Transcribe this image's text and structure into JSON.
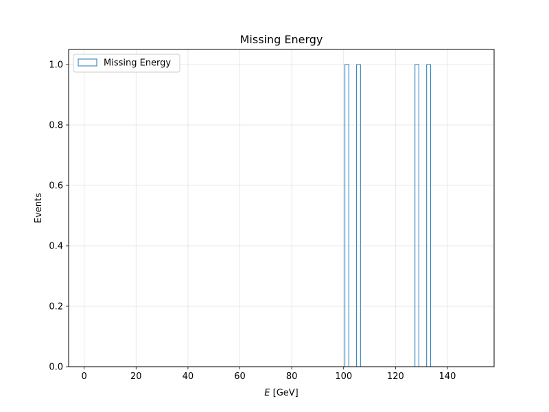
{
  "chart_data": {
    "type": "bar",
    "title": "Missing Energy",
    "xlabel_var": "E",
    "xlabel_unit": " [GeV]",
    "ylabel": "Events",
    "xlim": [
      -6,
      158
    ],
    "ylim": [
      0,
      1.05
    ],
    "xticks": [
      0,
      20,
      40,
      60,
      80,
      100,
      120,
      140
    ],
    "yticks": [
      0.0,
      0.2,
      0.4,
      0.6,
      0.8,
      1.0
    ],
    "xtick_labels": [
      "0",
      "20",
      "40",
      "60",
      "80",
      "100",
      "120",
      "140"
    ],
    "ytick_labels": [
      "0.0",
      "0.2",
      "0.4",
      "0.6",
      "0.8",
      "1.0"
    ],
    "grid": true,
    "legend_position": "top-left",
    "series": [
      {
        "name": "Missing Energy",
        "color": "#1f77b4",
        "hist_range": [
          0,
          150
        ],
        "bins": [
          {
            "x0": 100.5,
            "x1": 102.0,
            "count": 1
          },
          {
            "x0": 105.0,
            "x1": 106.5,
            "count": 1
          },
          {
            "x0": 127.5,
            "x1": 129.0,
            "count": 1
          },
          {
            "x0": 132.0,
            "x1": 133.5,
            "count": 1
          }
        ]
      }
    ]
  }
}
